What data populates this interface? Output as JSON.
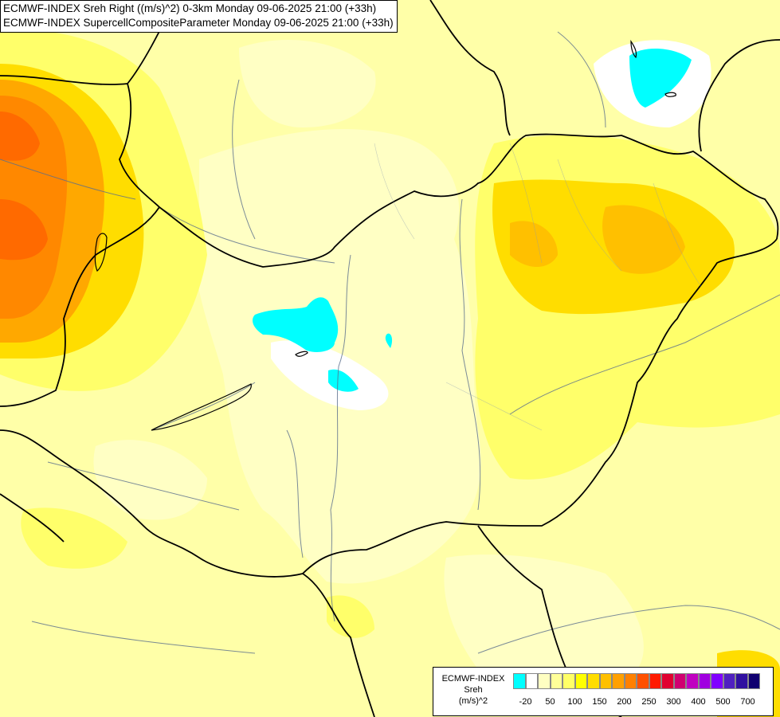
{
  "header": {
    "line1": "ECMWF-INDEX Sreh Right ((m/s)^2) 0-3km Monday 09-06-2025 21:00 (+33h)",
    "line2": "ECMWF-INDEX SupercellCompositeParameter Monday 09-06-2025 21:00 (+33h)"
  },
  "legend": {
    "line1": "ECMWF-INDEX",
    "line2": "Sreh",
    "line3": "(m/s)^2",
    "colors": [
      "#00ffff",
      "#ffffff",
      "#ffffc2",
      "#ffff99",
      "#ffff66",
      "#ffff00",
      "#ffdd00",
      "#ffc000",
      "#ffa000",
      "#ff8000",
      "#ff5000",
      "#ff1a00",
      "#e00030",
      "#d00070",
      "#c000c0",
      "#a000e0",
      "#8000ff",
      "#5020c0",
      "#3010a0",
      "#100070"
    ],
    "ticks": [
      {
        "label": "-20",
        "at": 1
      },
      {
        "label": "50",
        "at": 3
      },
      {
        "label": "100",
        "at": 5
      },
      {
        "label": "150",
        "at": 7
      },
      {
        "label": "200",
        "at": 9
      },
      {
        "label": "250",
        "at": 11
      },
      {
        "label": "300",
        "at": 13
      },
      {
        "label": "400",
        "at": 15
      },
      {
        "label": "500",
        "at": 17
      },
      {
        "label": "700",
        "at": 19
      }
    ]
  }
}
